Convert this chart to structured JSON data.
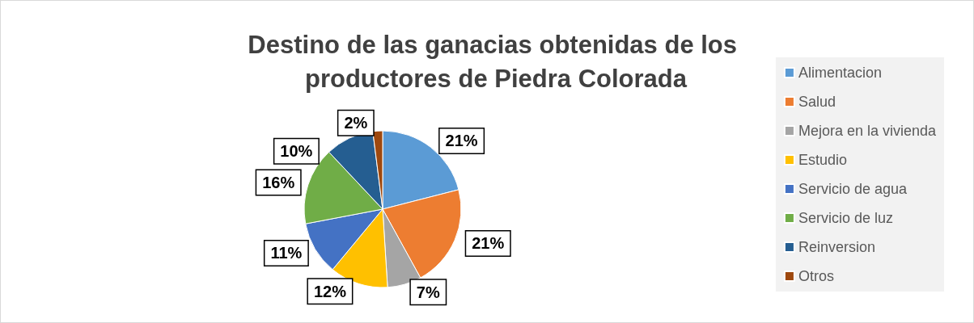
{
  "chart_data": {
    "type": "pie",
    "title": "Destino de las ganacias obtenidas de los productores de Piedra Colorada",
    "categories": [
      "Alimentacion",
      "Salud",
      "Mejora en la vivienda",
      "Estudio",
      "Servicio de agua",
      "Servicio de luz",
      "Reinversion",
      "Otros"
    ],
    "values": [
      21,
      21,
      7,
      12,
      11,
      16,
      10,
      2
    ],
    "colors": [
      "#5b9bd5",
      "#ed7d31",
      "#a5a5a5",
      "#ffc000",
      "#4472c4",
      "#70ad47",
      "#255e91",
      "#9e480e"
    ],
    "value_labels": [
      "21%",
      "21%",
      "7%",
      "12%",
      "11%",
      "16%",
      "10%",
      "2%"
    ],
    "legend": "right"
  }
}
